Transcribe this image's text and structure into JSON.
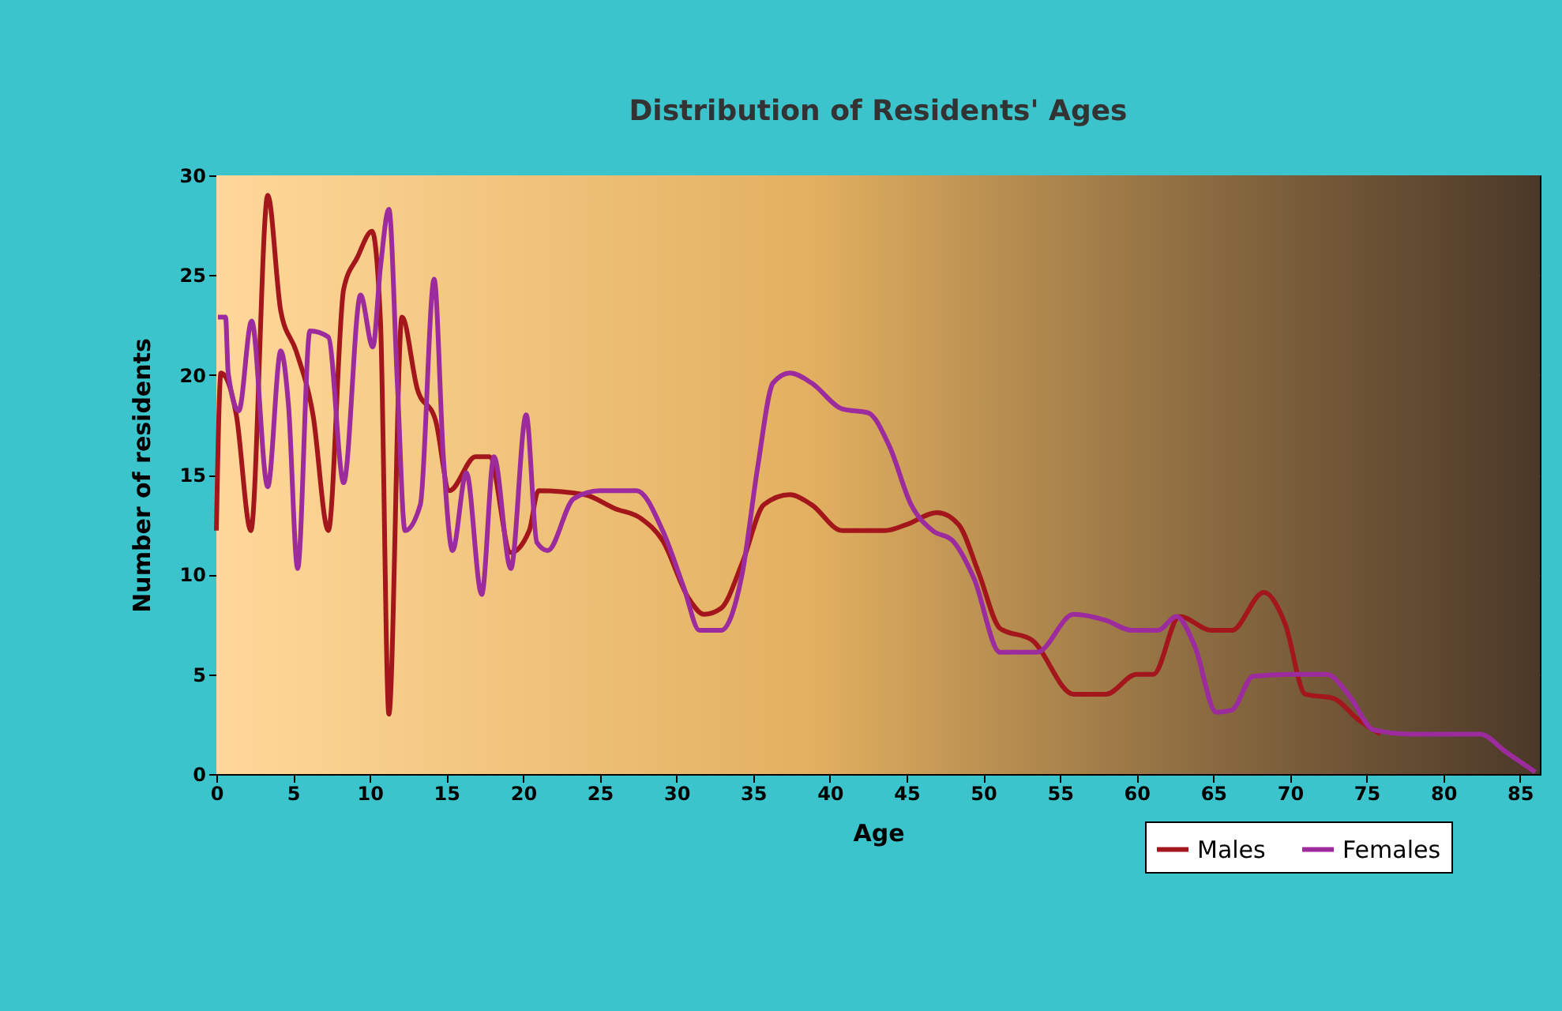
{
  "chart_data": {
    "type": "line",
    "title": "Distribution of Residents' Ages",
    "xlabel": "Age",
    "ylabel": "Number of residents",
    "xlim": [
      0,
      86.3
    ],
    "xticks": [
      0,
      5,
      10,
      15,
      20,
      25,
      30,
      35,
      40,
      45,
      50,
      55,
      60,
      65,
      70,
      75,
      80,
      85
    ],
    "ylim": [
      0,
      30
    ],
    "yticks": [
      0,
      5,
      10,
      15,
      20,
      25,
      30
    ],
    "grid": true,
    "legend": "bottom right",
    "marker": "none",
    "line_style": "solid",
    "series": [
      {
        "name": "Males",
        "color": "#a3161c",
        "x": [
          0.0,
          0.3,
          1.3,
          2.25,
          3.35,
          4.2,
          5.2,
          6.3,
          7.3,
          8.3,
          9.2,
          10.15,
          10.7,
          11.25,
          12.1,
          13.1,
          14.3,
          15.2,
          16.9,
          17.8,
          19.2,
          20.4,
          21.0,
          24.0,
          26.0,
          27.7,
          29.1,
          30.8,
          31.8,
          32.9,
          34.3,
          35.7,
          37.4,
          38.8,
          40.8,
          43.6,
          45.0,
          47.0,
          48.4,
          49.7,
          51.1,
          53.2,
          55.9,
          58.0,
          60.0,
          61.1,
          62.8,
          64.9,
          66.2,
          68.3,
          69.7,
          71.0,
          72.8,
          74.5,
          75.9
        ],
        "values": [
          12.2,
          20.1,
          18.0,
          12.2,
          29.0,
          23.2,
          21.2,
          18.0,
          12.2,
          24.3,
          25.9,
          27.2,
          22.7,
          3.0,
          22.9,
          19.3,
          17.7,
          14.2,
          15.9,
          15.9,
          11.1,
          12.2,
          14.2,
          14.0,
          13.3,
          12.8,
          11.7,
          8.8,
          8.0,
          8.3,
          10.6,
          13.5,
          14.0,
          13.5,
          12.2,
          12.2,
          12.5,
          13.1,
          12.5,
          10.1,
          7.3,
          6.7,
          4.0,
          4.0,
          5.0,
          5.0,
          7.9,
          7.2,
          7.2,
          9.1,
          7.5,
          4.0,
          3.8,
          2.7,
          2.0
        ]
      },
      {
        "name": "Females",
        "color": "#9c2b9e",
        "x": [
          0.1,
          0.6,
          0.77,
          1.46,
          2.3,
          3.35,
          4.2,
          4.7,
          5.3,
          6.1,
          7.3,
          8.3,
          9.4,
          10.2,
          10.7,
          11.25,
          11.8,
          12.3,
          13.3,
          14.2,
          14.8,
          15.4,
          16.3,
          17.3,
          18.1,
          19.2,
          20.2,
          20.9,
          21.6,
          23.3,
          25.0,
          27.4,
          29.1,
          30.5,
          31.5,
          32.9,
          34.3,
          35.3,
          36.3,
          37.4,
          38.8,
          40.8,
          42.5,
          43.9,
          45.3,
          46.7,
          48.0,
          49.4,
          51.1,
          53.5,
          55.9,
          58.0,
          59.7,
          61.4,
          62.6,
          63.8,
          65.2,
          66.2,
          67.6,
          70.0,
          72.4,
          73.8,
          75.5,
          77.9,
          82.4,
          84.1,
          86.0
        ],
        "values": [
          22.9,
          22.9,
          20.1,
          18.2,
          22.7,
          14.4,
          21.2,
          18.5,
          10.3,
          22.2,
          21.9,
          14.6,
          24.0,
          21.4,
          25.4,
          28.3,
          19.6,
          12.2,
          13.5,
          24.8,
          15.9,
          11.2,
          15.1,
          9.0,
          15.9,
          10.3,
          18.0,
          11.6,
          11.2,
          13.8,
          14.2,
          14.2,
          12.2,
          9.3,
          7.2,
          7.2,
          10.1,
          15.4,
          19.6,
          20.1,
          19.6,
          18.3,
          18.1,
          16.4,
          13.5,
          12.2,
          11.7,
          9.8,
          6.1,
          6.1,
          8.0,
          7.7,
          7.2,
          7.2,
          7.9,
          6.4,
          3.1,
          3.2,
          4.9,
          5.0,
          5.0,
          4.0,
          2.2,
          2.0,
          2.0,
          1.1,
          0.1
        ]
      }
    ]
  }
}
